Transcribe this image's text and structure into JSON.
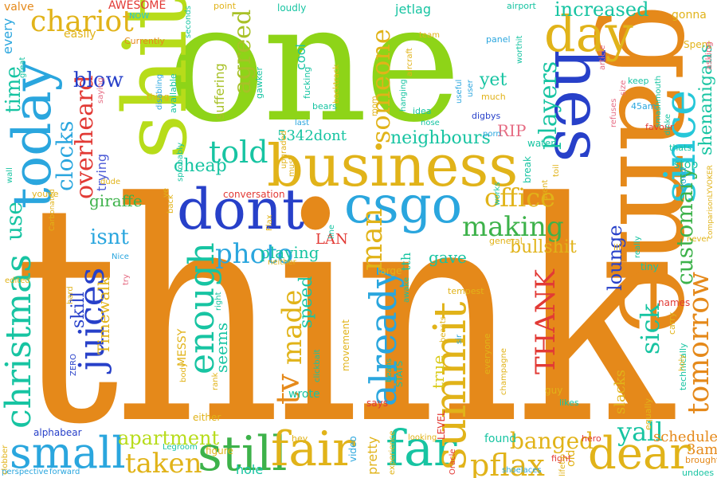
{
  "words": [
    {
      "id": "think",
      "text": "think"
    },
    {
      "id": "one",
      "text": "one"
    },
    {
      "id": "game",
      "text": "game"
    },
    {
      "id": "shit",
      "text": "shit"
    },
    {
      "id": "hes",
      "text": "hes"
    },
    {
      "id": "business",
      "text": "business"
    },
    {
      "id": "dont",
      "text": "dont"
    },
    {
      "id": "csgo",
      "text": "csgo"
    },
    {
      "id": "today",
      "text": "today"
    },
    {
      "id": "day",
      "text": "day"
    },
    {
      "id": "since",
      "text": "since"
    },
    {
      "id": "chariot",
      "text": "chariot"
    },
    {
      "id": "small",
      "text": "small"
    },
    {
      "id": "still",
      "text": "still"
    },
    {
      "id": "fair",
      "text": "fair"
    },
    {
      "id": "far",
      "text": "far"
    },
    {
      "id": "dear",
      "text": "dear"
    },
    {
      "id": "christmas",
      "text": "christmas"
    },
    {
      "id": "juices",
      "text": "juices"
    },
    {
      "id": "summit",
      "text": "summit"
    },
    {
      "id": "already",
      "text": "already"
    },
    {
      "id": "enough",
      "text": "enough"
    },
    {
      "id": "tomorrow",
      "text": "tomorrow"
    },
    {
      "id": "told",
      "text": "told"
    },
    {
      "id": "photo",
      "text": "photo"
    },
    {
      "id": "making",
      "text": "making"
    },
    {
      "id": "office",
      "text": "office"
    },
    {
      "id": "someone",
      "text": "someone"
    },
    {
      "id": "agreed",
      "text": "agreed"
    },
    {
      "id": "overheard",
      "text": "overheard"
    },
    {
      "id": "players",
      "text": "players"
    },
    {
      "id": "customary",
      "text": "customary"
    },
    {
      "id": "shenanigans",
      "text": "shenanigans"
    },
    {
      "id": "taken",
      "text": "taken"
    },
    {
      "id": "pflax",
      "text": "pflax"
    },
    {
      "id": "yall",
      "text": "yall"
    },
    {
      "id": "banged",
      "text": "banged"
    },
    {
      "id": "apartment",
      "text": "apartment"
    },
    {
      "id": "tv",
      "text": "tv"
    },
    {
      "id": "made",
      "text": "made"
    },
    {
      "id": "sick",
      "text": "sick"
    },
    {
      "id": "lounge",
      "text": "lounge"
    },
    {
      "id": "man",
      "text": "man"
    },
    {
      "id": "THANK",
      "text": "THANK"
    },
    {
      "id": "neighbours",
      "text": "neighbours"
    },
    {
      "id": "gave",
      "text": "gave"
    },
    {
      "id": "bullshit",
      "text": "bullshit"
    },
    {
      "id": "increased",
      "text": "increased"
    },
    {
      "id": "blow",
      "text": "blow"
    },
    {
      "id": "time",
      "text": "time"
    },
    {
      "id": "clocks",
      "text": "clocks"
    },
    {
      "id": "use",
      "text": "use"
    },
    {
      "id": "isnt",
      "text": "isnt"
    },
    {
      "id": "cheap",
      "text": "cheap"
    },
    {
      "id": "giraffe",
      "text": "giraffe"
    },
    {
      "id": "skill",
      "text": "skill"
    },
    {
      "id": "Timewalk",
      "text": "Timewalk"
    },
    {
      "id": "seems",
      "text": "seems"
    },
    {
      "id": "speed",
      "text": "speed"
    },
    {
      "id": "playing",
      "text": "playing"
    },
    {
      "id": "yet",
      "text": "yet"
    },
    {
      "id": "RIP",
      "text": "RIP"
    },
    {
      "id": "5342dont",
      "text": "5342dont"
    },
    {
      "id": "LAN",
      "text": "LAN"
    },
    {
      "id": "tth",
      "text": "tth"
    },
    {
      "id": "true",
      "text": "true"
    },
    {
      "id": "scheduled",
      "text": "scheduled"
    },
    {
      "id": "3am",
      "text": "3am"
    },
    {
      "id": "slacks",
      "text": "slacks"
    },
    {
      "id": "AWESOME",
      "text": "AWESOME"
    },
    {
      "id": "every",
      "text": "every"
    },
    {
      "id": "easily",
      "text": "easily"
    },
    {
      "id": "jetlag",
      "text": "jetlag"
    },
    {
      "id": "gonna",
      "text": "gonna"
    },
    {
      "id": "valve",
      "text": "valve"
    },
    {
      "id": "loudly",
      "text": "loudly"
    },
    {
      "id": "cool",
      "text": "cool"
    },
    {
      "id": "suffering",
      "text": "suffering"
    },
    {
      "id": "trying",
      "text": "trying"
    },
    {
      "id": "alphabear",
      "text": "alphabear"
    },
    {
      "id": "either",
      "text": "either"
    },
    {
      "id": "found",
      "text": "found"
    },
    {
      "id": "old",
      "text": "old"
    },
    {
      "id": "stop",
      "text": "stop"
    },
    {
      "id": "MESSY",
      "text": "MESSY"
    },
    {
      "id": "LEVEL",
      "text": "LEVEL"
    },
    {
      "id": "guy",
      "text": "guy"
    },
    {
      "id": "pretty",
      "text": "pretty"
    },
    {
      "id": "wrote",
      "text": "wrote"
    },
    {
      "id": "video",
      "text": "video"
    },
    {
      "id": "hole",
      "text": "hole"
    },
    {
      "id": "movement",
      "text": "movement"
    },
    {
      "id": "conversation",
      "text": "conversation"
    },
    {
      "id": "keep",
      "text": "keep"
    },
    {
      "id": "names",
      "text": "names"
    },
    {
      "id": "tiny",
      "text": "tiny"
    },
    {
      "id": "break",
      "text": "break"
    },
    {
      "id": "water",
      "text": "water"
    },
    {
      "id": "general",
      "text": "general"
    },
    {
      "id": "large",
      "text": "large"
    },
    {
      "id": "figure",
      "text": "figure"
    },
    {
      "id": "hey",
      "text": "hey"
    },
    {
      "id": "way",
      "text": "way"
    },
    {
      "id": "says",
      "text": "says"
    },
    {
      "id": "likes",
      "text": "likes"
    },
    {
      "id": "hero",
      "text": "hero"
    },
    {
      "id": "fight",
      "text": "fight"
    },
    {
      "id": "Legroom",
      "text": "Legroom"
    },
    {
      "id": "forward",
      "text": "forward"
    },
    {
      "id": "undoes",
      "text": "undoes"
    },
    {
      "id": "brought",
      "text": "brought"
    },
    {
      "id": "point",
      "text": "point"
    },
    {
      "id": "seconds",
      "text": "seconds"
    },
    {
      "id": "airport",
      "text": "airport"
    },
    {
      "id": "panel",
      "text": "panel"
    },
    {
      "id": "Spent",
      "text": "Spent"
    },
    {
      "id": "asking",
      "text": "asking"
    },
    {
      "id": "NOW",
      "text": "NOW"
    },
    {
      "id": "Currently",
      "text": "Currently"
    },
    {
      "id": "thing",
      "text": "thing"
    },
    {
      "id": "bears",
      "text": "bears"
    },
    {
      "id": "idea",
      "text": "idea"
    },
    {
      "id": "much",
      "text": "much"
    },
    {
      "id": "favour",
      "text": "favour"
    },
    {
      "id": "thats",
      "text": "thats"
    },
    {
      "id": "45am",
      "text": "45am"
    },
    {
      "id": "digbys",
      "text": "digbys"
    },
    {
      "id": "nose",
      "text": "nose"
    },
    {
      "id": "last",
      "text": "last"
    },
    {
      "id": "porn",
      "text": "porn"
    },
    {
      "id": "dude",
      "text": "dude"
    },
    {
      "id": "youve",
      "text": "youve"
    },
    {
      "id": "wall",
      "text": "wall"
    },
    {
      "id": "Nice",
      "text": "Nice"
    },
    {
      "id": "edited",
      "text": "edited"
    },
    {
      "id": "try",
      "text": "try"
    },
    {
      "id": "right",
      "text": "right"
    },
    {
      "id": "rank",
      "text": "rank"
    },
    {
      "id": "neither",
      "text": "neither"
    },
    {
      "id": "awake",
      "text": "awake"
    },
    {
      "id": "tempest",
      "text": "tempest"
    },
    {
      "id": "everyone",
      "text": "everyone"
    },
    {
      "id": "carry",
      "text": "carry"
    },
    {
      "id": "technically",
      "text": "technically"
    },
    {
      "id": "equally",
      "text": "equally"
    },
    {
      "id": "ill",
      "text": "ill"
    },
    {
      "id": "never",
      "text": "never"
    },
    {
      "id": "cloud",
      "text": "cloud"
    },
    {
      "id": "sir",
      "text": "sir"
    },
    {
      "id": "beans",
      "text": "beans"
    },
    {
      "id": "STATS",
      "text": "STATS"
    },
    {
      "id": "beasts",
      "text": "beasts"
    },
    {
      "id": "champagne",
      "text": "champagne"
    },
    {
      "id": "shoelaces",
      "text": "shoelaces"
    },
    {
      "id": "lifetip",
      "text": "lifetip"
    },
    {
      "id": "experience",
      "text": "experience"
    },
    {
      "id": "looking",
      "text": "looking"
    },
    {
      "id": "Oracle",
      "text": "Oracle"
    },
    {
      "id": "perspective",
      "text": "perspective"
    },
    {
      "id": "clobber",
      "text": "clobber"
    },
    {
      "id": "clickbait",
      "text": "clickbait"
    },
    {
      "id": "upgraded",
      "text": "upgraded"
    },
    {
      "id": "must",
      "text": "must"
    },
    {
      "id": "line",
      "text": "line"
    },
    {
      "id": "Flax",
      "text": "Flax"
    },
    {
      "id": "useful",
      "text": "useful"
    },
    {
      "id": "user",
      "text": "user"
    },
    {
      "id": "worthit",
      "text": "worthit"
    },
    {
      "id": "article",
      "text": "article"
    },
    {
      "id": "refuses",
      "text": "refuses"
    },
    {
      "id": "size",
      "text": "size"
    },
    {
      "id": "smashmouth",
      "text": "smashmouth"
    },
    {
      "id": "dinke",
      "text": "dinke"
    },
    {
      "id": "hanging",
      "text": "hanging"
    },
    {
      "id": "mom",
      "text": "mom"
    },
    {
      "id": "backtrack",
      "text": "backtrack"
    },
    {
      "id": "fucking",
      "text": "fucking"
    },
    {
      "id": "gawker",
      "text": "gawker"
    },
    {
      "id": "aircraft",
      "text": "aircraft"
    },
    {
      "id": "team",
      "text": "team"
    },
    {
      "id": "disabling",
      "text": "disabling"
    },
    {
      "id": "available",
      "text": "available"
    },
    {
      "id": "saying",
      "text": "saying"
    },
    {
      "id": "great",
      "text": "great"
    },
    {
      "id": "sprobably",
      "text": "sprobably"
    },
    {
      "id": "back",
      "text": "back"
    },
    {
      "id": "ye",
      "text": "ye"
    },
    {
      "id": "Carbonated",
      "text": "Carbonated"
    },
    {
      "id": "hard",
      "text": "hard"
    },
    {
      "id": "ZERO",
      "text": "ZERO"
    },
    {
      "id": "body",
      "text": "body"
    },
    {
      "id": "holy",
      "text": "holy"
    },
    {
      "id": "works",
      "text": "works"
    },
    {
      "id": "arent",
      "text": "arent"
    },
    {
      "id": "toil",
      "text": "toil"
    },
    {
      "id": "really",
      "text": "really"
    },
    {
      "id": "comparisonLYVOKER",
      "text": "comparisonLYVOKER"
    }
  ]
}
